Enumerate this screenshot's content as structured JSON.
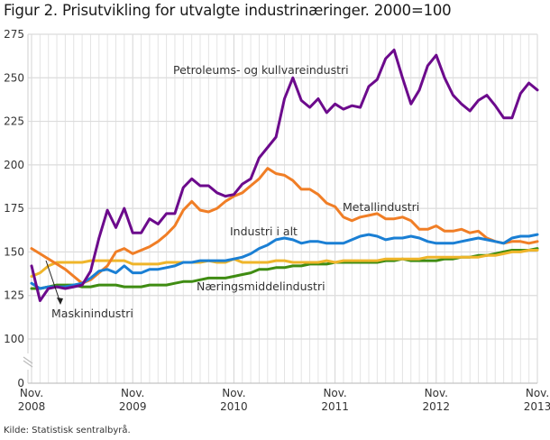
{
  "title": "Figur 2. Prisutvikling for utvalgte industrinæringer. 2000=100",
  "source": "Kilde: Statistisk sentralbyrå.",
  "chart_data": {
    "type": "line",
    "title": "Figur 2. Prisutvikling for utvalgte industrinæringer. 2000=100",
    "xlabel": "",
    "ylabel": "",
    "x_start": "Nov. 2008",
    "x_end": "Nov. 2013",
    "frequency": "monthly",
    "ylim": [
      0,
      275
    ],
    "axis_break": "between 0 and 100",
    "yticks": [
      "0",
      "100",
      "125",
      "150",
      "175",
      "200",
      "225",
      "250",
      "275"
    ],
    "xticks": [
      {
        "month": "Nov.",
        "year": "2008"
      },
      {
        "month": "Nov.",
        "year": "2009"
      },
      {
        "month": "Nov.",
        "year": "2010"
      },
      {
        "month": "Nov.",
        "year": "2011"
      },
      {
        "month": "Nov.",
        "year": "2012"
      },
      {
        "month": "Nov.",
        "year": "2013"
      }
    ],
    "grid": true,
    "legend": "inline labels",
    "series": [
      {
        "name": "Petroleums- og kullvareindustri",
        "color": "#6c0a8c",
        "values": [
          142,
          122,
          129,
          130,
          129,
          130,
          131,
          139,
          158,
          174,
          164,
          175,
          161,
          161,
          169,
          166,
          172,
          172,
          187,
          192,
          188,
          188,
          184,
          182,
          183,
          189,
          192,
          204,
          210,
          216,
          238,
          250,
          237,
          233,
          238,
          230,
          235,
          232,
          234,
          233,
          245,
          249,
          261,
          266,
          250,
          235,
          243,
          257,
          263,
          250,
          240,
          235,
          231,
          237,
          240,
          234,
          227,
          227,
          241,
          247,
          243
        ]
      },
      {
        "name": "Metallindustri",
        "color": "#f07e26",
        "values": [
          152,
          149,
          146,
          143,
          140,
          136,
          132,
          134,
          138,
          142,
          150,
          152,
          149,
          151,
          153,
          156,
          160,
          165,
          174,
          179,
          174,
          173,
          175,
          179,
          182,
          184,
          188,
          192,
          198,
          195,
          194,
          191,
          186,
          186,
          183,
          178,
          176,
          170,
          168,
          170,
          171,
          172,
          169,
          169,
          170,
          168,
          163,
          163,
          165,
          162,
          162,
          163,
          161,
          162,
          158,
          156,
          155,
          156,
          156,
          155,
          156
        ]
      },
      {
        "name": "Industri i alt",
        "color": "#1a7fd4",
        "values": [
          132,
          129,
          130,
          130,
          130,
          131,
          132,
          135,
          139,
          140,
          138,
          142,
          138,
          138,
          140,
          140,
          141,
          142,
          144,
          144,
          145,
          145,
          145,
          145,
          146,
          147,
          149,
          152,
          154,
          157,
          158,
          157,
          155,
          156,
          156,
          155,
          155,
          155,
          157,
          159,
          160,
          159,
          157,
          158,
          158,
          159,
          158,
          156,
          155,
          155,
          155,
          156,
          157,
          158,
          157,
          156,
          155,
          158,
          159,
          159,
          160
        ]
      },
      {
        "name": "Maskinindustri",
        "color": "#efb52a",
        "values": [
          136,
          138,
          142,
          144,
          144,
          144,
          144,
          145,
          145,
          145,
          145,
          145,
          143,
          143,
          143,
          143,
          144,
          144,
          144,
          144,
          144,
          145,
          144,
          144,
          146,
          144,
          144,
          144,
          144,
          145,
          145,
          144,
          144,
          144,
          144,
          145,
          144,
          145,
          145,
          145,
          145,
          145,
          146,
          146,
          146,
          146,
          146,
          147,
          147,
          147,
          147,
          147,
          147,
          147,
          148,
          148,
          149,
          150,
          150,
          151,
          151
        ]
      },
      {
        "name": "Næringsmiddelindustri",
        "color": "#3f8c12",
        "values": [
          129,
          129,
          130,
          131,
          131,
          131,
          130,
          130,
          131,
          131,
          131,
          130,
          130,
          130,
          131,
          131,
          131,
          132,
          133,
          133,
          134,
          135,
          135,
          135,
          136,
          137,
          138,
          140,
          140,
          141,
          141,
          142,
          142,
          143,
          143,
          143,
          144,
          144,
          144,
          144,
          144,
          144,
          145,
          145,
          146,
          145,
          145,
          145,
          145,
          146,
          146,
          147,
          147,
          148,
          148,
          149,
          150,
          151,
          151,
          151,
          152
        ]
      }
    ],
    "annotations": [
      {
        "text": "Petroleums- og kullvareindustri",
        "series": "Petroleums- og kullvareindustri"
      },
      {
        "text": "Metallindustri",
        "series": "Metallindustri"
      },
      {
        "text": "Industri i alt",
        "series": "Industri i alt"
      },
      {
        "text": "Næringsmiddelindustri",
        "series": "Næringsmiddelindustri"
      },
      {
        "text": "Maskinindustri",
        "series": "Maskinindustri",
        "arrow": true
      }
    ]
  }
}
